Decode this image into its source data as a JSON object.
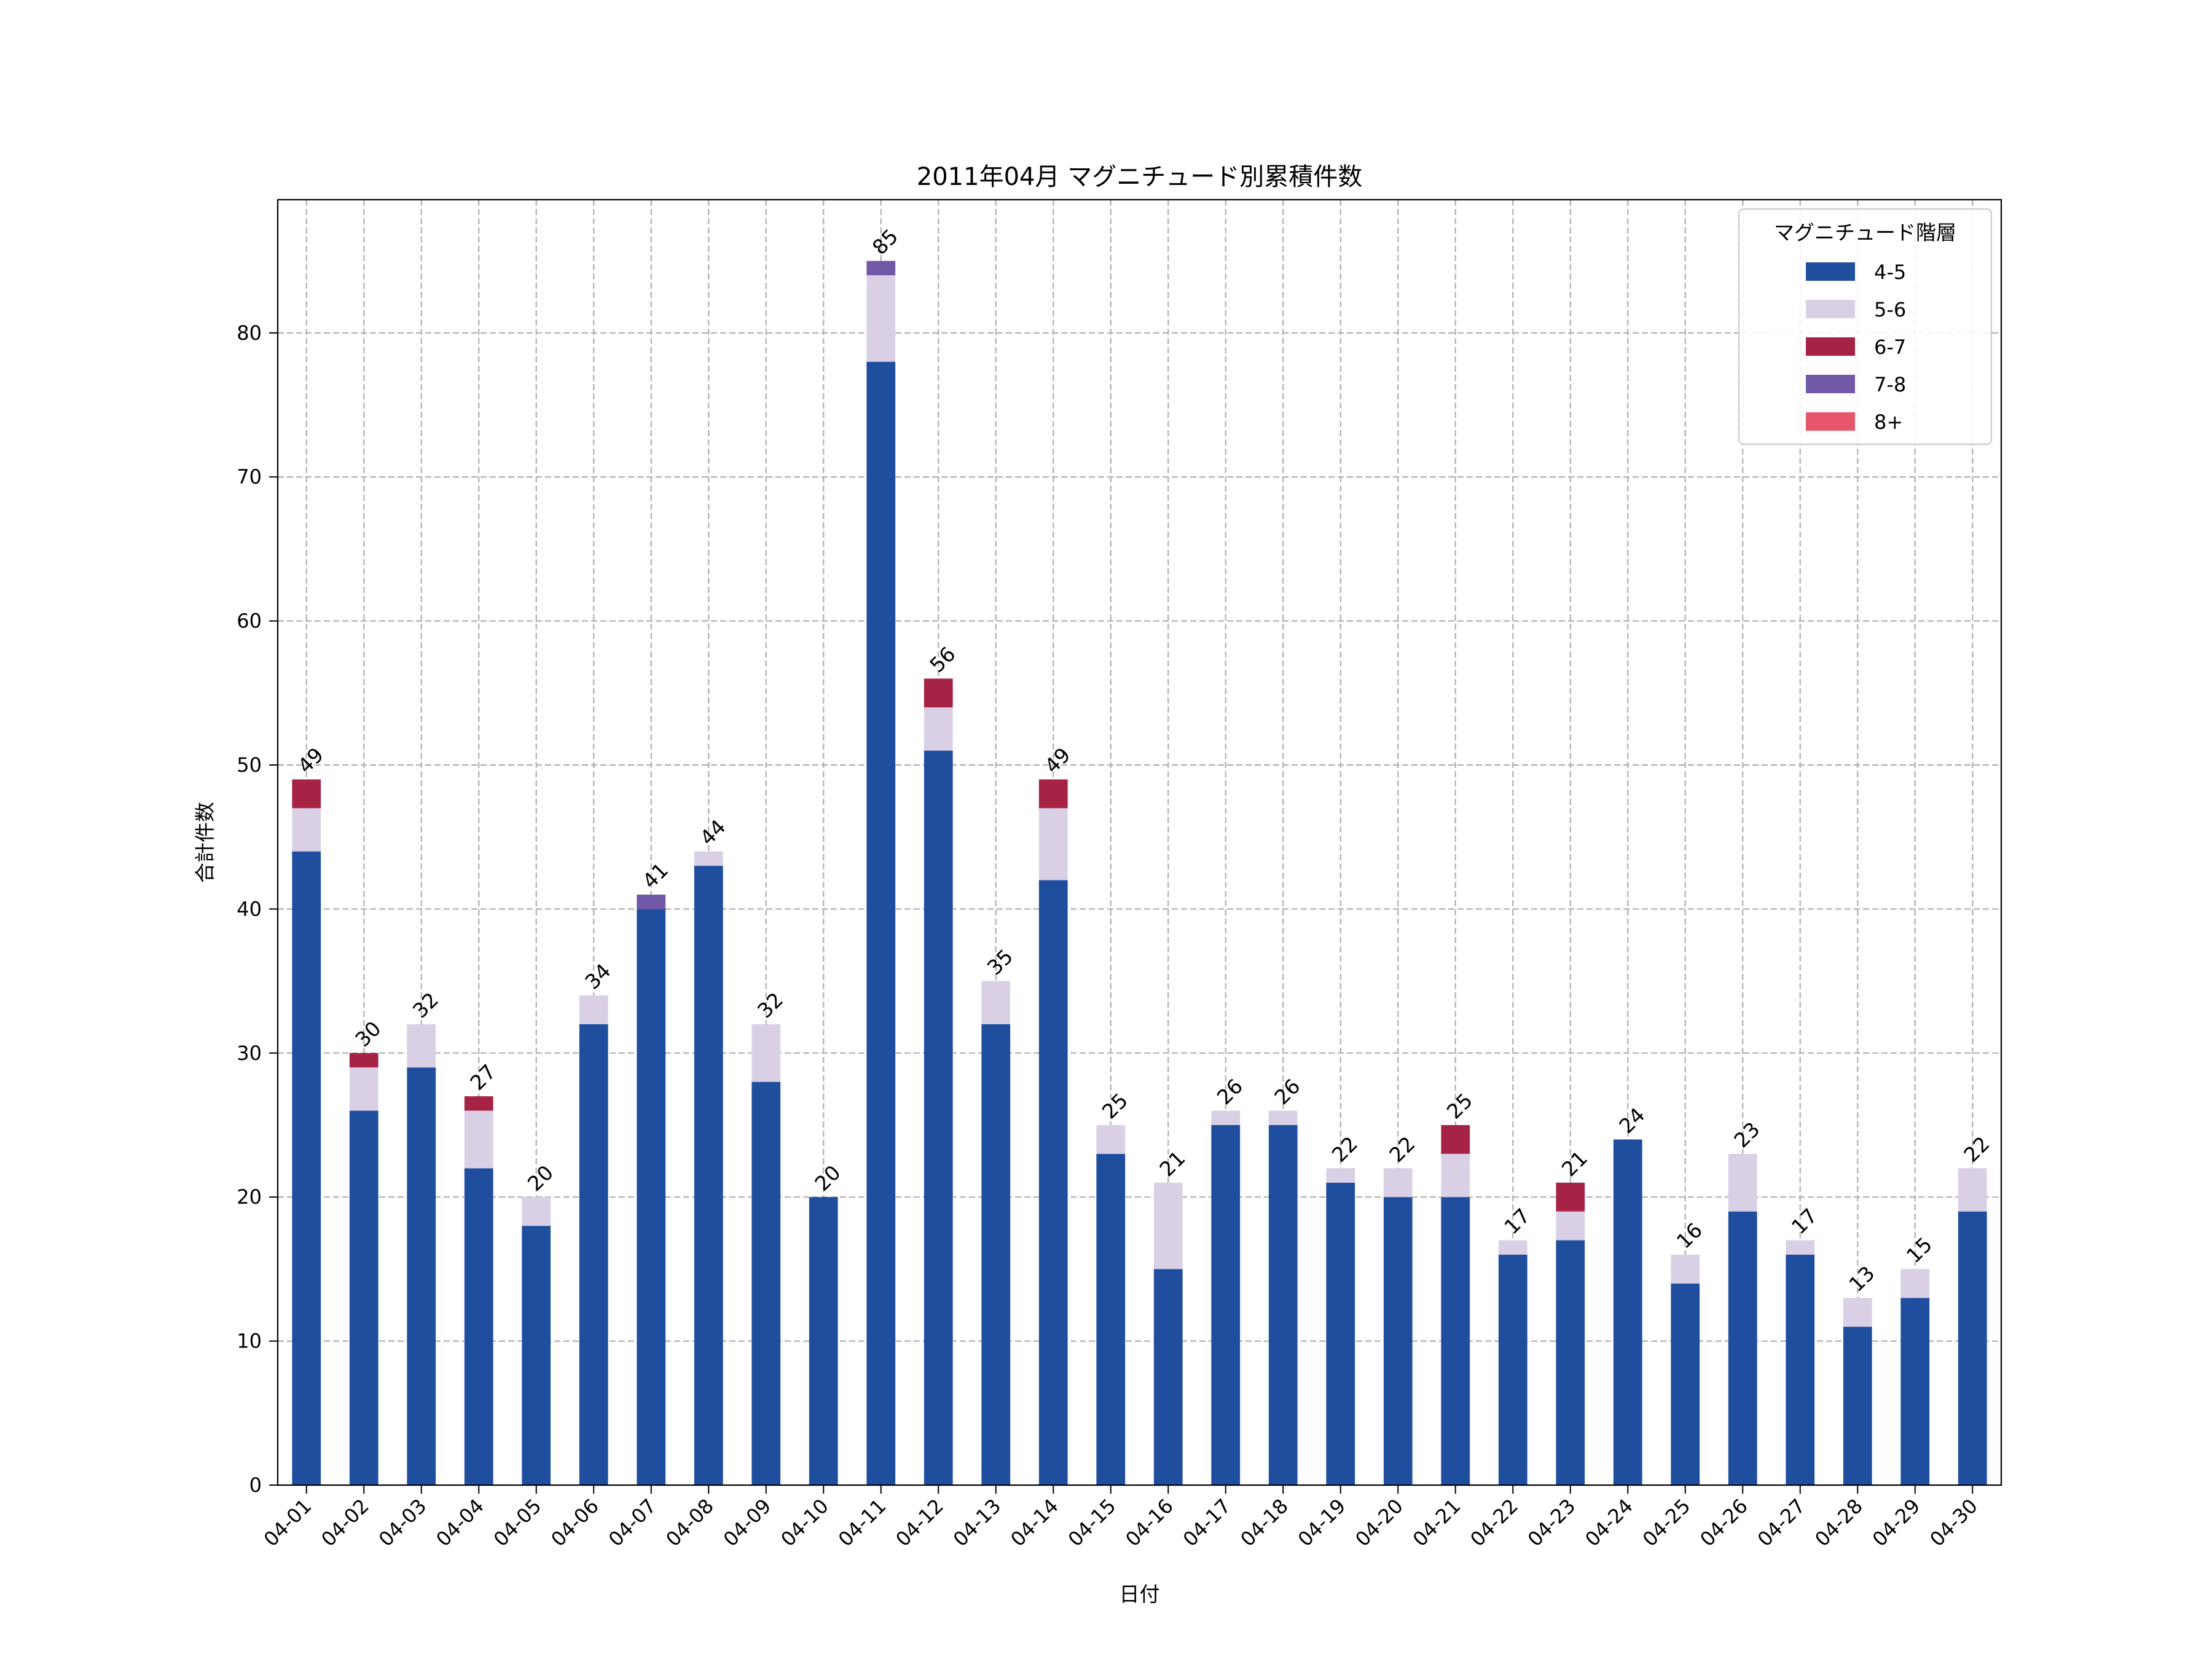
{
  "chart_data": {
    "type": "bar",
    "stacked": true,
    "title": "2011年04月 マグニチュード別累積件数",
    "xlabel": "日付",
    "ylabel": "合計件数",
    "ylim": [
      0,
      89.25
    ],
    "yticks": [
      0,
      10,
      20,
      30,
      40,
      50,
      60,
      70,
      80
    ],
    "grid": true,
    "legend_title": "マグニチュード階層",
    "legend_position": "top-right",
    "categories": [
      "04-01",
      "04-02",
      "04-03",
      "04-04",
      "04-05",
      "04-06",
      "04-07",
      "04-08",
      "04-09",
      "04-10",
      "04-11",
      "04-12",
      "04-13",
      "04-14",
      "04-15",
      "04-16",
      "04-17",
      "04-18",
      "04-19",
      "04-20",
      "04-21",
      "04-22",
      "04-23",
      "04-24",
      "04-25",
      "04-26",
      "04-27",
      "04-28",
      "04-29",
      "04-30"
    ],
    "series": [
      {
        "name": "4-5",
        "color": "#1f4e9f",
        "values": [
          44,
          26,
          29,
          22,
          18,
          32,
          40,
          43,
          28,
          20,
          78,
          51,
          32,
          42,
          23,
          15,
          25,
          25,
          21,
          20,
          20,
          16,
          17,
          24,
          14,
          19,
          16,
          11,
          13,
          19
        ]
      },
      {
        "name": "5-6",
        "color": "#dad0e6",
        "values": [
          3,
          3,
          3,
          4,
          2,
          2,
          0,
          1,
          4,
          0,
          6,
          3,
          3,
          5,
          2,
          6,
          1,
          1,
          1,
          2,
          3,
          1,
          2,
          0,
          2,
          4,
          1,
          2,
          2,
          3
        ]
      },
      {
        "name": "6-7",
        "color": "#a72346",
        "values": [
          2,
          1,
          0,
          1,
          0,
          0,
          0,
          0,
          0,
          0,
          0,
          2,
          0,
          2,
          0,
          0,
          0,
          0,
          0,
          0,
          2,
          0,
          2,
          0,
          0,
          0,
          0,
          0,
          0,
          0
        ]
      },
      {
        "name": "7-8",
        "color": "#7259a8",
        "values": [
          0,
          0,
          0,
          0,
          0,
          0,
          1,
          0,
          0,
          0,
          1,
          0,
          0,
          0,
          0,
          0,
          0,
          0,
          0,
          0,
          0,
          0,
          0,
          0,
          0,
          0,
          0,
          0,
          0,
          0
        ]
      },
      {
        "name": "8+",
        "color": "#e8566b",
        "values": [
          0,
          0,
          0,
          0,
          0,
          0,
          0,
          0,
          0,
          0,
          0,
          0,
          0,
          0,
          0,
          0,
          0,
          0,
          0,
          0,
          0,
          0,
          0,
          0,
          0,
          0,
          0,
          0,
          0,
          0
        ]
      }
    ],
    "totals": [
      49,
      30,
      32,
      27,
      20,
      34,
      41,
      44,
      32,
      20,
      85,
      56,
      35,
      49,
      25,
      21,
      26,
      26,
      22,
      22,
      25,
      17,
      21,
      24,
      16,
      23,
      17,
      13,
      15,
      22
    ]
  }
}
